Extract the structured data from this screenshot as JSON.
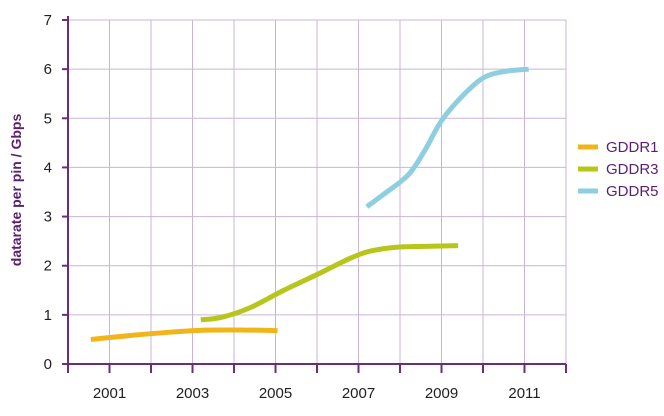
{
  "chart_data": {
    "type": "line",
    "ylabel": "datarate per pin / Gbps",
    "xlabel": "",
    "xlim": [
      2000,
      2012
    ],
    "ylim": [
      0,
      7
    ],
    "x_ticks": [
      2001,
      2003,
      2005,
      2007,
      2009,
      2011
    ],
    "y_ticks": [
      0,
      1,
      2,
      3,
      4,
      5,
      6,
      7
    ],
    "grid": true,
    "legend_position": "right",
    "colors": {
      "grid": "#c9b4d8",
      "axis": "#6b2c7a",
      "text": "#1f1f1f"
    },
    "series": [
      {
        "name": "GDDR1",
        "color": "#f0b51a",
        "points": [
          {
            "x": 2000.55,
            "y": 0.5
          },
          {
            "x": 2001.5,
            "y": 0.58
          },
          {
            "x": 2002.5,
            "y": 0.65
          },
          {
            "x": 2003.3,
            "y": 0.69
          },
          {
            "x": 2004.3,
            "y": 0.69
          },
          {
            "x": 2005.05,
            "y": 0.68
          }
        ]
      },
      {
        "name": "GDDR3",
        "color": "#b7c61a",
        "points": [
          {
            "x": 2003.2,
            "y": 0.9
          },
          {
            "x": 2003.7,
            "y": 0.95
          },
          {
            "x": 2004.4,
            "y": 1.15
          },
          {
            "x": 2005.2,
            "y": 1.5
          },
          {
            "x": 2006.0,
            "y": 1.82
          },
          {
            "x": 2006.8,
            "y": 2.15
          },
          {
            "x": 2007.3,
            "y": 2.3
          },
          {
            "x": 2008.0,
            "y": 2.38
          },
          {
            "x": 2009.0,
            "y": 2.4
          },
          {
            "x": 2009.4,
            "y": 2.41
          }
        ]
      },
      {
        "name": "GDDR5",
        "color": "#8dcfe0",
        "points": [
          {
            "x": 2007.2,
            "y": 3.2
          },
          {
            "x": 2007.6,
            "y": 3.45
          },
          {
            "x": 2008.2,
            "y": 3.85
          },
          {
            "x": 2008.6,
            "y": 4.35
          },
          {
            "x": 2009.0,
            "y": 4.95
          },
          {
            "x": 2009.5,
            "y": 5.45
          },
          {
            "x": 2010.0,
            "y": 5.82
          },
          {
            "x": 2010.5,
            "y": 5.95
          },
          {
            "x": 2011.1,
            "y": 6.0
          }
        ]
      }
    ]
  }
}
